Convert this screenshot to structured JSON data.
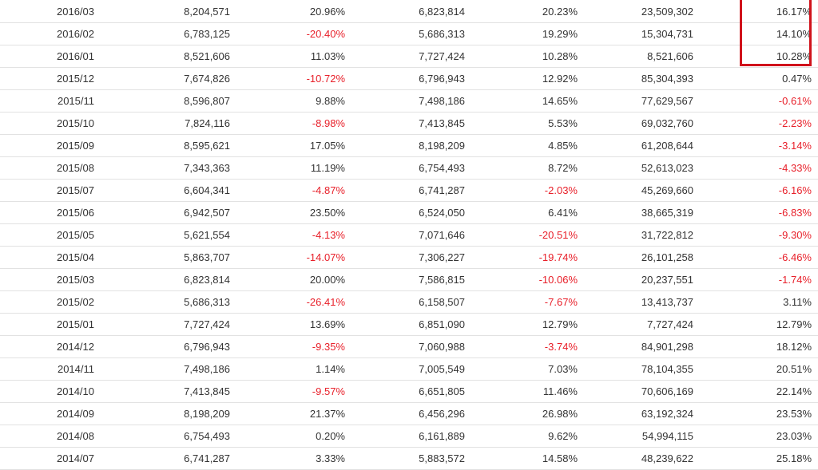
{
  "colors": {
    "negative": "#e8202a",
    "text": "#333333",
    "highlight": "#d0121b",
    "row_border": "#e2e2e2"
  },
  "rows": [
    [
      "2016/03",
      "8,204,571",
      "20.96%",
      "6,823,814",
      "20.23%",
      "23,509,302",
      "16.17%"
    ],
    [
      "2016/02",
      "6,783,125",
      "-20.40%",
      "5,686,313",
      "19.29%",
      "15,304,731",
      "14.10%"
    ],
    [
      "2016/01",
      "8,521,606",
      "11.03%",
      "7,727,424",
      "10.28%",
      "8,521,606",
      "10.28%"
    ],
    [
      "2015/12",
      "7,674,826",
      "-10.72%",
      "6,796,943",
      "12.92%",
      "85,304,393",
      "0.47%"
    ],
    [
      "2015/11",
      "8,596,807",
      "9.88%",
      "7,498,186",
      "14.65%",
      "77,629,567",
      "-0.61%"
    ],
    [
      "2015/10",
      "7,824,116",
      "-8.98%",
      "7,413,845",
      "5.53%",
      "69,032,760",
      "-2.23%"
    ],
    [
      "2015/09",
      "8,595,621",
      "17.05%",
      "8,198,209",
      "4.85%",
      "61,208,644",
      "-3.14%"
    ],
    [
      "2015/08",
      "7,343,363",
      "11.19%",
      "6,754,493",
      "8.72%",
      "52,613,023",
      "-4.33%"
    ],
    [
      "2015/07",
      "6,604,341",
      "-4.87%",
      "6,741,287",
      "-2.03%",
      "45,269,660",
      "-6.16%"
    ],
    [
      "2015/06",
      "6,942,507",
      "23.50%",
      "6,524,050",
      "6.41%",
      "38,665,319",
      "-6.83%"
    ],
    [
      "2015/05",
      "5,621,554",
      "-4.13%",
      "7,071,646",
      "-20.51%",
      "31,722,812",
      "-9.30%"
    ],
    [
      "2015/04",
      "5,863,707",
      "-14.07%",
      "7,306,227",
      "-19.74%",
      "26,101,258",
      "-6.46%"
    ],
    [
      "2015/03",
      "6,823,814",
      "20.00%",
      "7,586,815",
      "-10.06%",
      "20,237,551",
      "-1.74%"
    ],
    [
      "2015/02",
      "5,686,313",
      "-26.41%",
      "6,158,507",
      "-7.67%",
      "13,413,737",
      "3.11%"
    ],
    [
      "2015/01",
      "7,727,424",
      "13.69%",
      "6,851,090",
      "12.79%",
      "7,727,424",
      "12.79%"
    ],
    [
      "2014/12",
      "6,796,943",
      "-9.35%",
      "7,060,988",
      "-3.74%",
      "84,901,298",
      "18.12%"
    ],
    [
      "2014/11",
      "7,498,186",
      "1.14%",
      "7,005,549",
      "7.03%",
      "78,104,355",
      "20.51%"
    ],
    [
      "2014/10",
      "7,413,845",
      "-9.57%",
      "6,651,805",
      "11.46%",
      "70,606,169",
      "22.14%"
    ],
    [
      "2014/09",
      "8,198,209",
      "21.37%",
      "6,456,296",
      "26.98%",
      "63,192,324",
      "23.53%"
    ],
    [
      "2014/08",
      "6,754,493",
      "0.20%",
      "6,161,889",
      "9.62%",
      "54,994,115",
      "23.03%"
    ],
    [
      "2014/07",
      "6,741,287",
      "3.33%",
      "5,883,572",
      "14.58%",
      "48,239,622",
      "25.18%"
    ]
  ]
}
